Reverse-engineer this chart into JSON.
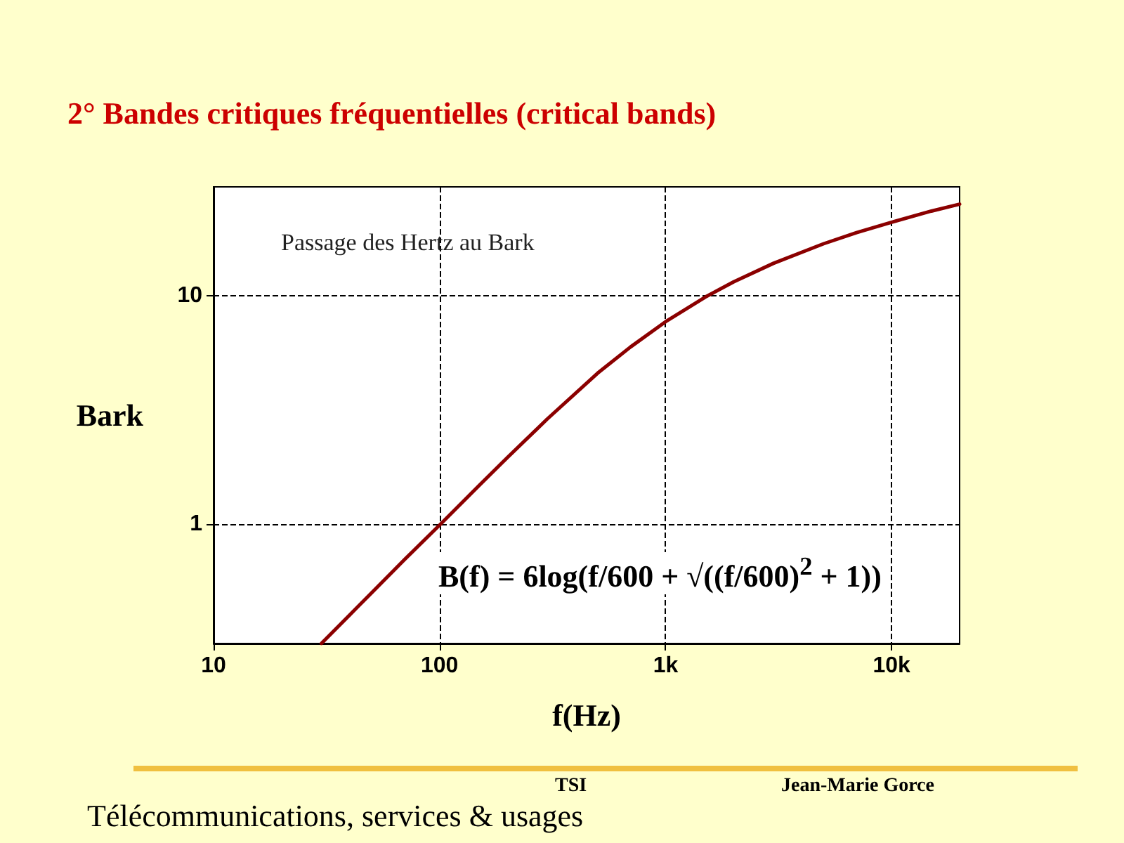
{
  "chart_data": {
    "type": "line",
    "title": "2° Bandes critiques fréquentielles (critical bands)",
    "xlabel": "f(Hz)",
    "ylabel": "Bark",
    "x": [
      30,
      40,
      50,
      70,
      100,
      150,
      200,
      300,
      500,
      700,
      1000,
      1500,
      2000,
      3000,
      5000,
      7000,
      10000,
      15000,
      20000
    ],
    "series": [
      {
        "color": "#8b0000",
        "values": [
          0.3,
          0.4,
          0.5,
          0.7,
          0.99,
          1.48,
          1.96,
          2.89,
          4.58,
          5.97,
          7.7,
          9.88,
          11.51,
          13.87,
          16.9,
          18.9,
          21.0,
          23.5,
          25.2
        ]
      }
    ],
    "log": "xy",
    "xlim": [
      10,
      20000
    ],
    "ylim": [
      0.3,
      30
    ],
    "xticks": [
      10,
      100,
      {
        "value": 1000,
        "label": "1k"
      },
      {
        "value": 10000,
        "label": "10k"
      }
    ],
    "yticks": [
      1,
      10
    ],
    "grid": true,
    "marker": "none",
    "line_style": "solid",
    "annotations": [
      "Passage des Hertz au Bark",
      "B(f) = 6log(f/600 + √((f/600)$^{2}$ + 1))",
      "TSI",
      "Jean-Marie Gorce",
      "Télécommunications, services & usages"
    ]
  }
}
